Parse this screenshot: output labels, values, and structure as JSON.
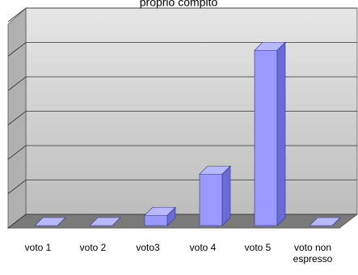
{
  "chart_data": {
    "type": "bar3d",
    "title": "proprio compito",
    "categories": [
      "voto 1",
      "voto 2",
      "voto3",
      "voto 4",
      "voto 5",
      "voto non espresso"
    ],
    "values": [
      0,
      0,
      0.3,
      1.5,
      5.1,
      0
    ],
    "color": "#9999ff",
    "ylim": [
      0,
      6
    ],
    "yticks": [
      0,
      1,
      2,
      3,
      4,
      5,
      6
    ],
    "grid": true
  }
}
